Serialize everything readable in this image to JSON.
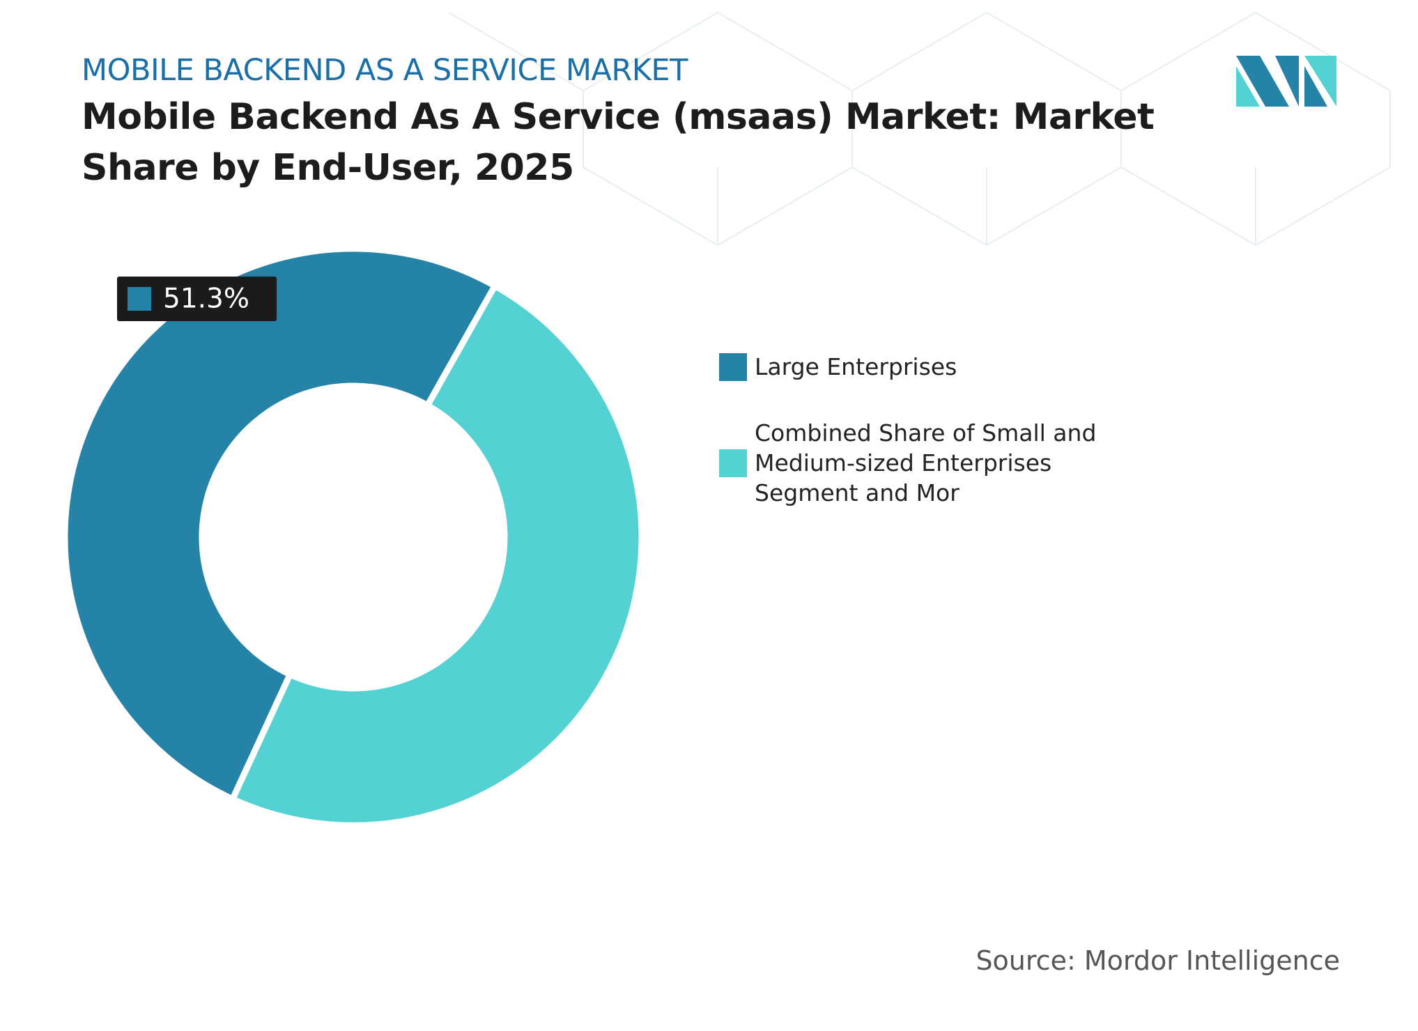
{
  "chart_data": {
    "type": "donut",
    "supertitle": "MOBILE BACKEND AS A SERVICE MARKET",
    "title": "Mobile Backend As A Service (msaas) Market: Market Share by End-User, 2025",
    "categories": [
      "Large Enterprises",
      "Combined Share of Small and Medium-sized Enterprises Segment and Mor"
    ],
    "values": [
      51.3,
      48.7
    ],
    "value_labels": [
      "51.3%",
      null
    ],
    "colors": [
      "#2683a8",
      "#53d1d3"
    ],
    "source": "Source: Mordor Intelligence"
  }
}
